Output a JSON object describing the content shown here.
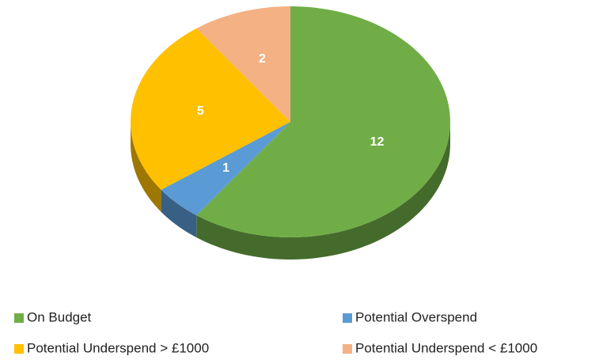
{
  "chart_data": {
    "type": "pie",
    "categories": [
      "On Budget",
      "Potential Overspend",
      "Potential Underspend > £1000",
      "Potential Underspend < £1000"
    ],
    "values": [
      12,
      1,
      5,
      2
    ],
    "colors": [
      "#70ad47",
      "#5b9bd5",
      "#ffc000",
      "#f4b183"
    ],
    "legend": "bottom"
  }
}
